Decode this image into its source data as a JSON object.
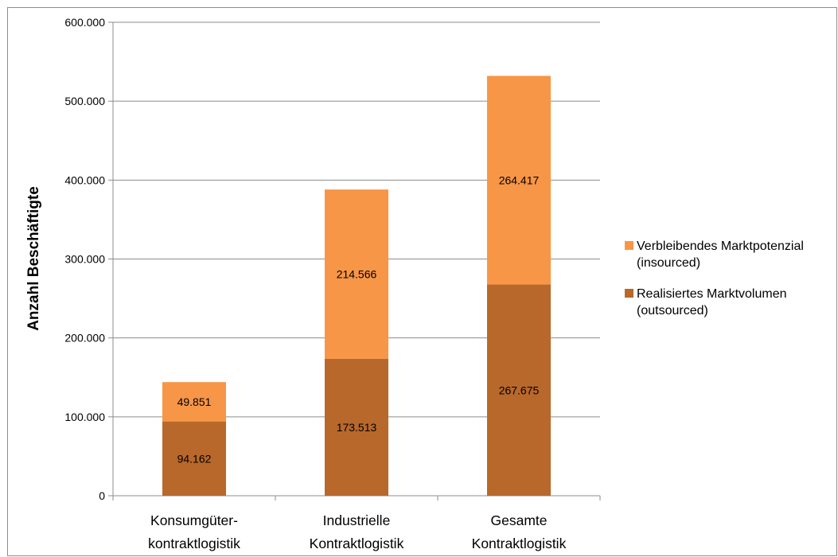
{
  "chart_data": {
    "type": "bar",
    "stacked": true,
    "title": "",
    "xlabel": "",
    "ylabel": "Anzahl Beschäftigte",
    "ylim": [
      0,
      600000
    ],
    "yticks": [
      0,
      100000,
      200000,
      300000,
      400000,
      500000,
      600000
    ],
    "ytick_labels": [
      "0",
      "100.000",
      "200.000",
      "300.000",
      "400.000",
      "500.000",
      "600.000"
    ],
    "grid": true,
    "legend_position": "right",
    "categories": [
      [
        "Konsumgüter-",
        "kontraktlogistik"
      ],
      [
        "Industrielle",
        "Kontraktlogistik"
      ],
      [
        "Gesamte",
        "Kontraktlogistik"
      ]
    ],
    "series": [
      {
        "name": [
          "Realisiertes Marktvolumen",
          "(outsourced)"
        ],
        "color": "#b8682a",
        "values": [
          94162,
          173513,
          267675
        ],
        "labels": [
          "94.162",
          "173.513",
          "267.675"
        ]
      },
      {
        "name": [
          "Verbleibendes Marktpotenzial",
          "(insourced)"
        ],
        "color": "#f79646",
        "values": [
          49851,
          214566,
          264417
        ],
        "labels": [
          "49.851",
          "214.566",
          "264.417"
        ]
      }
    ]
  }
}
